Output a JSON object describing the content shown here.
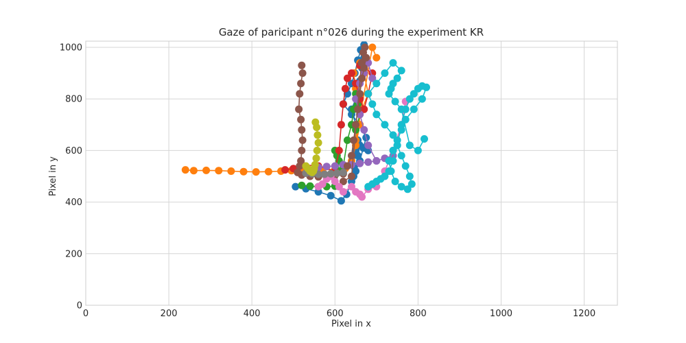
{
  "chart_data": {
    "type": "scatter",
    "title": "Gaze of paricipant n°026 during the experiment KR",
    "xlabel": "Pixel in x",
    "ylabel": "Pixel in y",
    "xlim": [
      0,
      1280
    ],
    "ylim": [
      0,
      1024
    ],
    "x_ticks": [
      0,
      200,
      400,
      600,
      800,
      1000,
      1200
    ],
    "y_ticks": [
      0,
      200,
      400,
      600,
      800,
      1000
    ],
    "grid": true,
    "legend": "none",
    "series": [
      {
        "color": "#1f77b4",
        "x": [
          505,
          530,
          560,
          590,
          615,
          628,
          640,
          645,
          650,
          655,
          650,
          640,
          655,
          660,
          665,
          670,
          670,
          662,
          655,
          648,
          640,
          630,
          620,
          640,
          660,
          675,
          668,
          660,
          650,
          645,
          655,
          660,
          680
        ],
        "y": [
          460,
          452,
          440,
          425,
          405,
          430,
          480,
          540,
          600,
          640,
          700,
          760,
          820,
          870,
          920,
          960,
          1010,
          990,
          950,
          900,
          860,
          820,
          780,
          740,
          700,
          650,
          610,
          560,
          520,
          500,
          580,
          620,
          600
        ]
      },
      {
        "color": "#ff7f0e",
        "x": [
          240,
          260,
          290,
          320,
          350,
          380,
          410,
          440,
          470,
          495,
          520,
          545,
          570,
          600,
          625,
          640,
          650,
          660,
          655,
          650,
          645,
          660,
          670,
          680,
          665,
          655,
          650,
          690,
          700
        ],
        "y": [
          525,
          522,
          523,
          522,
          520,
          518,
          517,
          518,
          520,
          522,
          523,
          524,
          525,
          527,
          530,
          560,
          620,
          700,
          780,
          840,
          900,
          940,
          900,
          820,
          760,
          700,
          640,
          1000,
          960
        ]
      },
      {
        "color": "#2ca02c",
        "x": [
          520,
          540,
          560,
          580,
          600,
          610,
          605,
          600,
          610,
          620,
          630,
          640,
          645,
          650,
          655,
          660,
          650
        ],
        "y": [
          465,
          462,
          460,
          460,
          462,
          520,
          580,
          600,
          560,
          540,
          640,
          700,
          760,
          820,
          780,
          740,
          680
        ]
      },
      {
        "color": "#d62728",
        "x": [
          480,
          500,
          520,
          560,
          600,
          610,
          615,
          620,
          625,
          630,
          640,
          650,
          660,
          670,
          680,
          690,
          660
        ],
        "y": [
          525,
          530,
          545,
          540,
          520,
          600,
          700,
          780,
          840,
          880,
          900,
          860,
          800,
          760,
          820,
          900,
          930
        ]
      },
      {
        "color": "#9467bd",
        "x": [
          560,
          580,
          600,
          620,
          640,
          660,
          680,
          700,
          720,
          740,
          700,
          680,
          670,
          660,
          650,
          660,
          670,
          680,
          690
        ],
        "y": [
          535,
          538,
          540,
          545,
          545,
          550,
          555,
          560,
          570,
          580,
          560,
          620,
          680,
          740,
          800,
          860,
          900,
          940,
          880
        ]
      },
      {
        "color": "#8c564b",
        "x": [
          520,
          522,
          518,
          515,
          513,
          518,
          520,
          522,
          520,
          518,
          515,
          510,
          520,
          540,
          560,
          580,
          600,
          620,
          630,
          640,
          645,
          650,
          655,
          660,
          665,
          670,
          675,
          672,
          668,
          664,
          640,
          620
        ],
        "y": [
          930,
          900,
          860,
          820,
          760,
          720,
          680,
          640,
          600,
          560,
          540,
          515,
          505,
          500,
          498,
          500,
          505,
          510,
          540,
          580,
          640,
          700,
          760,
          820,
          880,
          920,
          960,
          1000,
          980,
          940,
          500,
          480
        ]
      },
      {
        "color": "#e377c2",
        "x": [
          560,
          570,
          580,
          590,
          600,
          610,
          620,
          640,
          650,
          660,
          665,
          680,
          700,
          720,
          740,
          760,
          770
        ],
        "y": [
          460,
          470,
          490,
          500,
          480,
          460,
          440,
          460,
          440,
          430,
          420,
          450,
          460,
          520,
          600,
          700,
          790
        ]
      },
      {
        "color": "#7f7f7f",
        "x": [
          530,
          545,
          560,
          575,
          590,
          605,
          620
        ],
        "y": [
          512,
          510,
          508,
          508,
          510,
          512,
          515
        ]
      },
      {
        "color": "#bcbd22",
        "x": [
          553,
          556,
          558,
          560,
          557,
          555,
          552,
          550,
          548,
          545,
          540,
          535,
          530
        ],
        "y": [
          710,
          690,
          660,
          630,
          600,
          570,
          545,
          530,
          520,
          515,
          520,
          530,
          540
        ]
      },
      {
        "color": "#17becf",
        "x": [
          680,
          690,
          700,
          710,
          720,
          730,
          740,
          750,
          760,
          770,
          780,
          790,
          800,
          810,
          820,
          810,
          790,
          770,
          760,
          750,
          740,
          730,
          735,
          745,
          760,
          775,
          785,
          780,
          770,
          760,
          750,
          740,
          720,
          700,
          690,
          680,
          700,
          720,
          740,
          760,
          750,
          740,
          735,
          730,
          745,
          760,
          780,
          800,
          815
        ],
        "y": [
          460,
          470,
          480,
          490,
          500,
          520,
          560,
          620,
          700,
          760,
          800,
          820,
          840,
          850,
          845,
          800,
          760,
          720,
          680,
          640,
          600,
          560,
          520,
          480,
          460,
          450,
          470,
          500,
          540,
          580,
          620,
          660,
          700,
          740,
          780,
          820,
          860,
          900,
          940,
          910,
          880,
          860,
          840,
          820,
          790,
          760,
          620,
          600,
          645
        ]
      }
    ]
  }
}
